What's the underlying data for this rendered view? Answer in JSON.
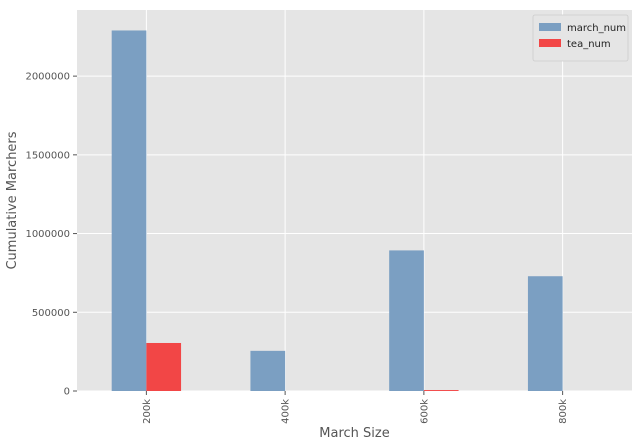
{
  "chart_data": {
    "type": "bar",
    "categories": [
      "200k",
      "400k",
      "600k",
      "800k"
    ],
    "series": [
      {
        "name": "march_num",
        "values": [
          2290000,
          255000,
          893000,
          729000
        ],
        "color": "#7b9fc2"
      },
      {
        "name": "tea_num",
        "values": [
          305000,
          0,
          6000,
          0
        ],
        "color": "#f24646"
      }
    ],
    "xlabel": "March Size",
    "ylabel": "Cumulative Marchers",
    "ylim": [
      0,
      2420000
    ],
    "yticks": [
      0,
      500000,
      1000000,
      1500000,
      2000000
    ],
    "ytick_labels": [
      "0",
      "500000",
      "1000000",
      "1500000",
      "2000000"
    ],
    "grid": true,
    "legend_position": "top-right",
    "background_color": "#e5e5e5"
  }
}
